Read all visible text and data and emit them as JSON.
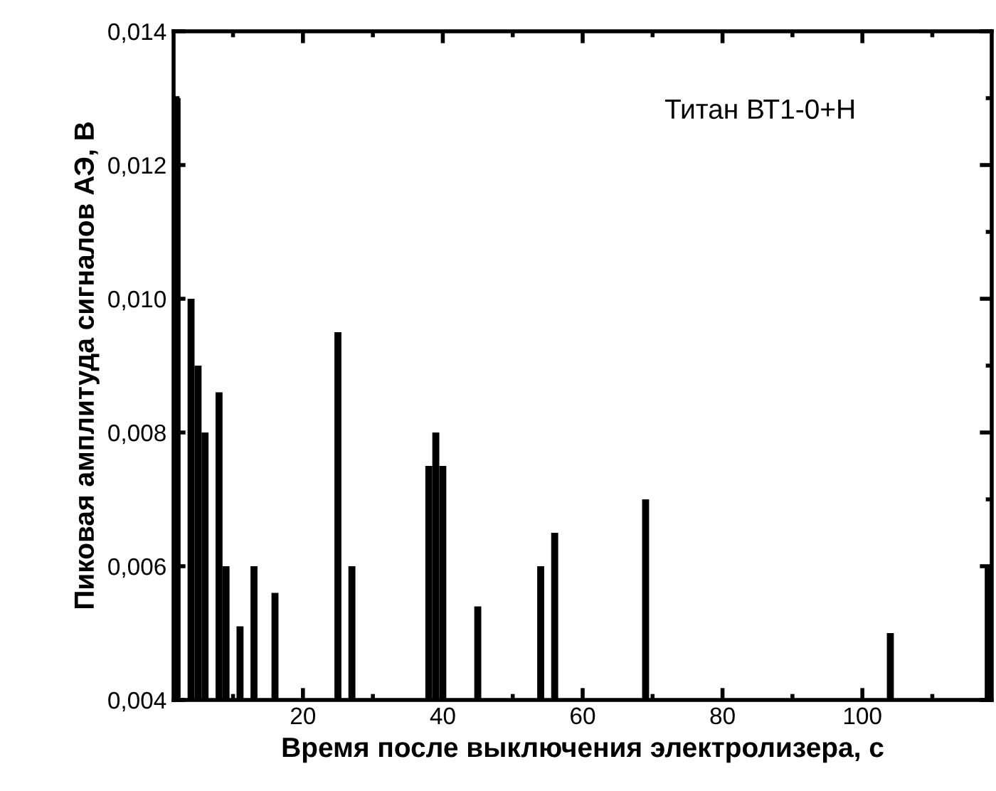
{
  "chart_data": {
    "type": "bar",
    "xlabel": "Время после выключения электролизера, с",
    "ylabel": "Пиковая амплитуда сигналов АЭ, В",
    "annotations": [
      "Титан ВТ1-0+Н"
    ],
    "x": [
      2,
      4,
      5,
      6,
      8,
      9,
      11,
      13,
      16,
      25,
      27,
      38,
      39,
      40,
      45,
      54,
      56,
      69,
      104,
      118
    ],
    "values": [
      0.013,
      0.01,
      0.009,
      0.008,
      0.0086,
      0.006,
      0.0051,
      0.006,
      0.0056,
      0.0095,
      0.006,
      0.0075,
      0.008,
      0.0075,
      0.0054,
      0.006,
      0.0065,
      0.007,
      0.005,
      0.006
    ],
    "color": "#000000",
    "xlim": [
      1.5,
      118.5
    ],
    "xticks": [
      20,
      40,
      60,
      80,
      100
    ],
    "ylim": [
      0.004,
      0.014
    ],
    "yticks": [
      {
        "value": 0.004,
        "label": "0,004"
      },
      {
        "value": 0.006,
        "label": "0,006"
      },
      {
        "value": 0.008,
        "label": "0,008"
      },
      {
        "value": 0.01,
        "label": "0,010"
      },
      {
        "value": 0.012,
        "label": "0,012"
      },
      {
        "value": 0.014,
        "label": "0,014"
      }
    ],
    "grid": false,
    "legend": false
  }
}
